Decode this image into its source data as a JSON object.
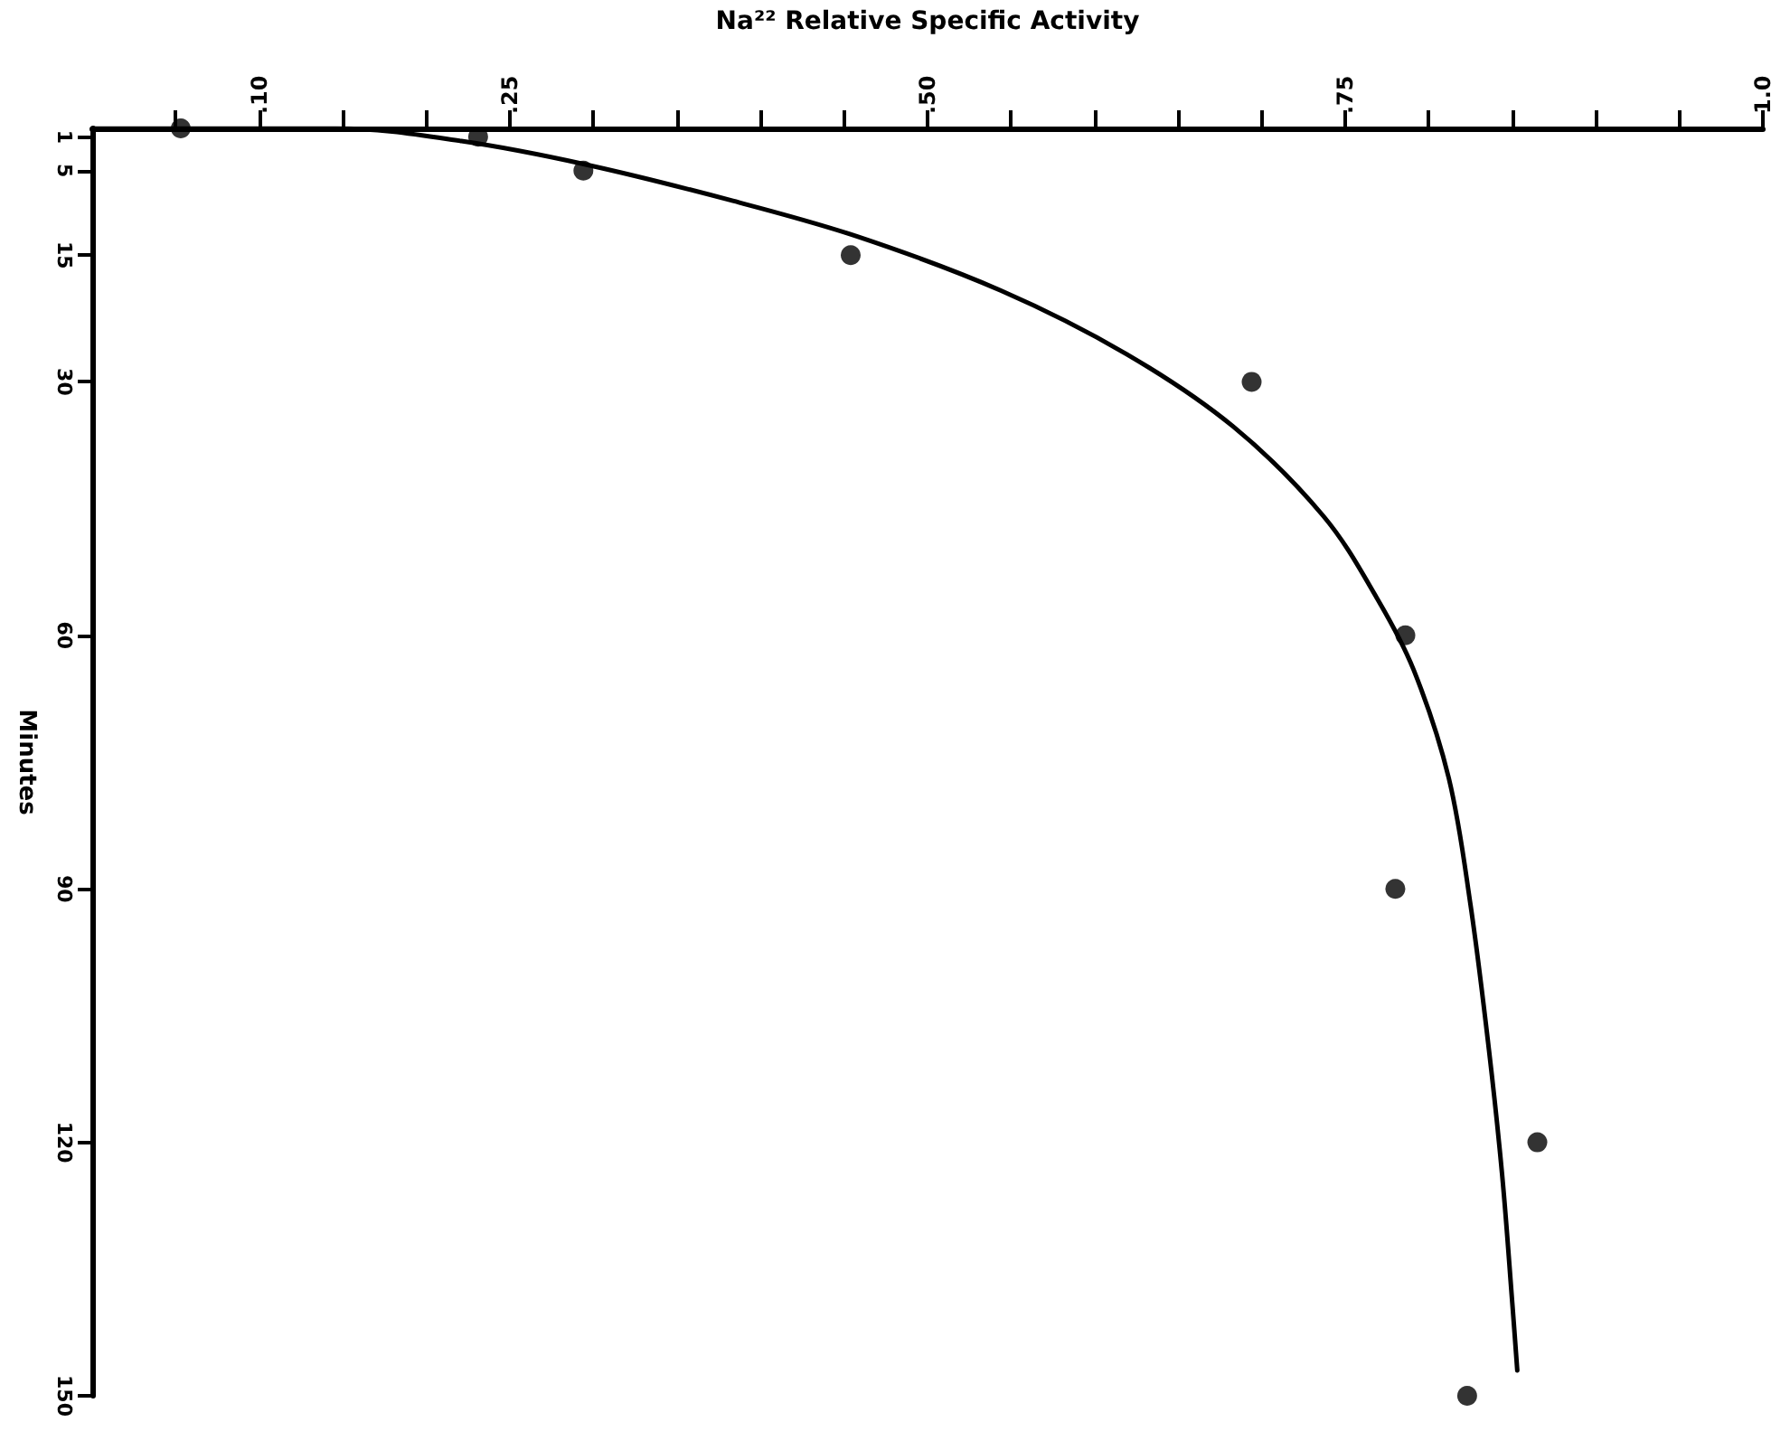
{
  "chart_data": {
    "type": "scatter",
    "xlabel": "Na²² Relative Specific Activity",
    "ylabel": "Minutes",
    "xlim": [
      0,
      1
    ],
    "xticks": [
      {
        "value": 0.05,
        "label": null
      },
      {
        "value": 0.1,
        "label": ".10"
      },
      {
        "value": 0.15,
        "label": null
      },
      {
        "value": 0.2,
        "label": null
      },
      {
        "value": 0.25,
        "label": ".25"
      },
      {
        "value": 0.3,
        "label": null
      },
      {
        "value": 0.35,
        "label": null
      },
      {
        "value": 0.4,
        "label": null
      },
      {
        "value": 0.45,
        "label": null
      },
      {
        "value": 0.5,
        "label": ".50"
      },
      {
        "value": 0.55,
        "label": null
      },
      {
        "value": 0.6,
        "label": null
      },
      {
        "value": 0.65,
        "label": null
      },
      {
        "value": 0.7,
        "label": null
      },
      {
        "value": 0.75,
        "label": ".75"
      },
      {
        "value": 0.8,
        "label": null
      },
      {
        "value": 0.85,
        "label": null
      },
      {
        "value": 0.9,
        "label": null
      },
      {
        "value": 0.95,
        "label": null
      },
      {
        "value": 1,
        "label": "1.0"
      }
    ],
    "ylim": [
      150,
      0
    ],
    "yticks": [
      1,
      5,
      15,
      30,
      60,
      90,
      120,
      150
    ],
    "grid": false,
    "marker": "circle",
    "series": [
      {
        "color": "#000000",
        "x": [
          0.053,
          0.231,
          0.294,
          0.454,
          0.694,
          0.786,
          0.78,
          0.865,
          0.823
        ],
        "values": [
          0,
          1,
          5,
          15,
          30,
          60,
          90,
          120,
          150
        ]
      },
      {
        "type": "line",
        "color": "#000000",
        "marker": "none",
        "line_style": "solid",
        "x": [
          0,
          0.092,
          0.146,
          0.221,
          0.296,
          0.382,
          0.458,
          0.544,
          0.619,
          0.683,
          0.737,
          0.769,
          0.791,
          0.812,
          0.825,
          0.836,
          0.844,
          0.85,
          0.853
        ],
        "values": [
          0,
          0,
          0,
          1.5,
          4.3,
          8.5,
          12.8,
          19.2,
          26.7,
          35.3,
          45.9,
          55.6,
          64.1,
          76.9,
          91.9,
          109,
          124,
          139,
          147
        ]
      }
    ]
  }
}
